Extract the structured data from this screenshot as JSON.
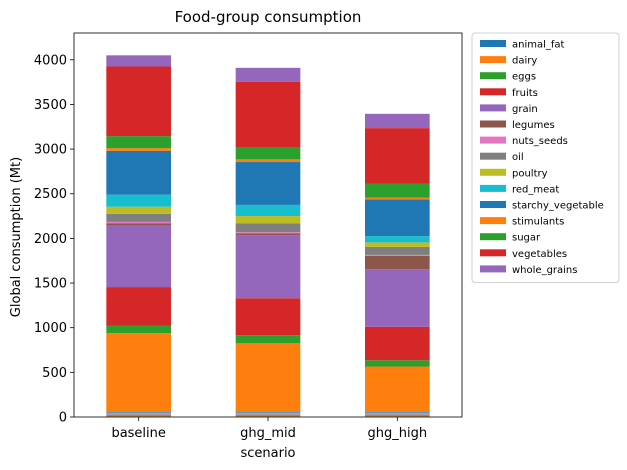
{
  "chart_data": {
    "type": "bar",
    "stacked": true,
    "title": "Food-group consumption",
    "xlabel": "scenario",
    "ylabel": "Global consumption (Mt)",
    "categories": [
      "baseline",
      "ghg_mid",
      "ghg_high"
    ],
    "ylim": [
      0,
      4300
    ],
    "yticks": [
      0,
      500,
      1000,
      1500,
      2000,
      2500,
      3000,
      3500,
      4000
    ],
    "legend_position": "outside-right",
    "series": [
      {
        "name": "animal_fat",
        "color": "#1f77b4",
        "values": [
          5,
          5,
          5
        ]
      },
      {
        "name": "dairy",
        "color": "#ff7f0e",
        "values": [
          5,
          5,
          5
        ]
      },
      {
        "name": "eggs",
        "color": "#2ca02c",
        "values": [
          5,
          5,
          5
        ]
      },
      {
        "name": "fruits",
        "color": "#d62728",
        "values": [
          5,
          5,
          5
        ]
      },
      {
        "name": "grain",
        "color": "#9467bd",
        "values": [
          5,
          5,
          5
        ]
      },
      {
        "name": "legumes",
        "color": "#8c564b",
        "values": [
          5,
          5,
          5
        ]
      },
      {
        "name": "nuts_seeds",
        "color": "#e377c2",
        "values": [
          5,
          5,
          5
        ]
      },
      {
        "name": "oil",
        "color": "#7f7f7f",
        "values": [
          5,
          5,
          5
        ]
      },
      {
        "name": "poultry",
        "color": "#bcbd22",
        "values": [
          5,
          5,
          5
        ]
      },
      {
        "name": "red_meat",
        "color": "#17becf",
        "values": [
          5,
          5,
          5
        ]
      },
      {
        "name": "starchy_vegetable",
        "color": "#1f77b4",
        "values": [
          5,
          5,
          5
        ]
      },
      {
        "name": "stimulants",
        "color": "#ff7f0e",
        "values": [
          885,
          770,
          510
        ]
      },
      {
        "name": "sugar",
        "color": "#2ca02c",
        "values": [
          80,
          90,
          70
        ]
      },
      {
        "name": "vegetables",
        "color": "#d62728",
        "values": [
          435,
          415,
          375
        ]
      },
      {
        "name": "whole_grains",
        "color": "#9467bd",
        "values": [
          695,
          705,
          645
        ]
      },
      {
        "name": "legumes",
        "color": "#8c564b",
        "values": [
          20,
          20,
          150
        ]
      },
      {
        "name": "nuts_seeds",
        "color": "#e377c2",
        "values": [
          15,
          15,
          10
        ]
      },
      {
        "name": "oil",
        "color": "#7f7f7f",
        "values": [
          90,
          100,
          90
        ]
      },
      {
        "name": "poultry",
        "color": "#bcbd22",
        "values": [
          80,
          80,
          50
        ]
      },
      {
        "name": "red_meat",
        "color": "#17becf",
        "values": [
          135,
          125,
          70
        ]
      },
      {
        "name": "starchy_vegetable",
        "color": "#1f77b4",
        "values": [
          490,
          480,
          410
        ]
      },
      {
        "name": "stimulants",
        "color": "#ff7f0e",
        "values": [
          30,
          30,
          20
        ]
      },
      {
        "name": "sugar",
        "color": "#2ca02c",
        "values": [
          135,
          130,
          160
        ]
      },
      {
        "name": "vegetables",
        "color": "#d62728",
        "values": [
          780,
          740,
          620
        ]
      },
      {
        "name": "whole_grains",
        "color": "#9467bd",
        "values": [
          125,
          155,
          160
        ]
      }
    ],
    "legend": [
      {
        "name": "animal_fat",
        "color": "#1f77b4"
      },
      {
        "name": "dairy",
        "color": "#ff7f0e"
      },
      {
        "name": "eggs",
        "color": "#2ca02c"
      },
      {
        "name": "fruits",
        "color": "#d62728"
      },
      {
        "name": "grain",
        "color": "#9467bd"
      },
      {
        "name": "legumes",
        "color": "#8c564b"
      },
      {
        "name": "nuts_seeds",
        "color": "#e377c2"
      },
      {
        "name": "oil",
        "color": "#7f7f7f"
      },
      {
        "name": "poultry",
        "color": "#bcbd22"
      },
      {
        "name": "red_meat",
        "color": "#17becf"
      },
      {
        "name": "starchy_vegetable",
        "color": "#1f77b4"
      },
      {
        "name": "stimulants",
        "color": "#ff7f0e"
      },
      {
        "name": "sugar",
        "color": "#2ca02c"
      },
      {
        "name": "vegetables",
        "color": "#d62728"
      },
      {
        "name": "whole_grains",
        "color": "#9467bd"
      }
    ]
  }
}
